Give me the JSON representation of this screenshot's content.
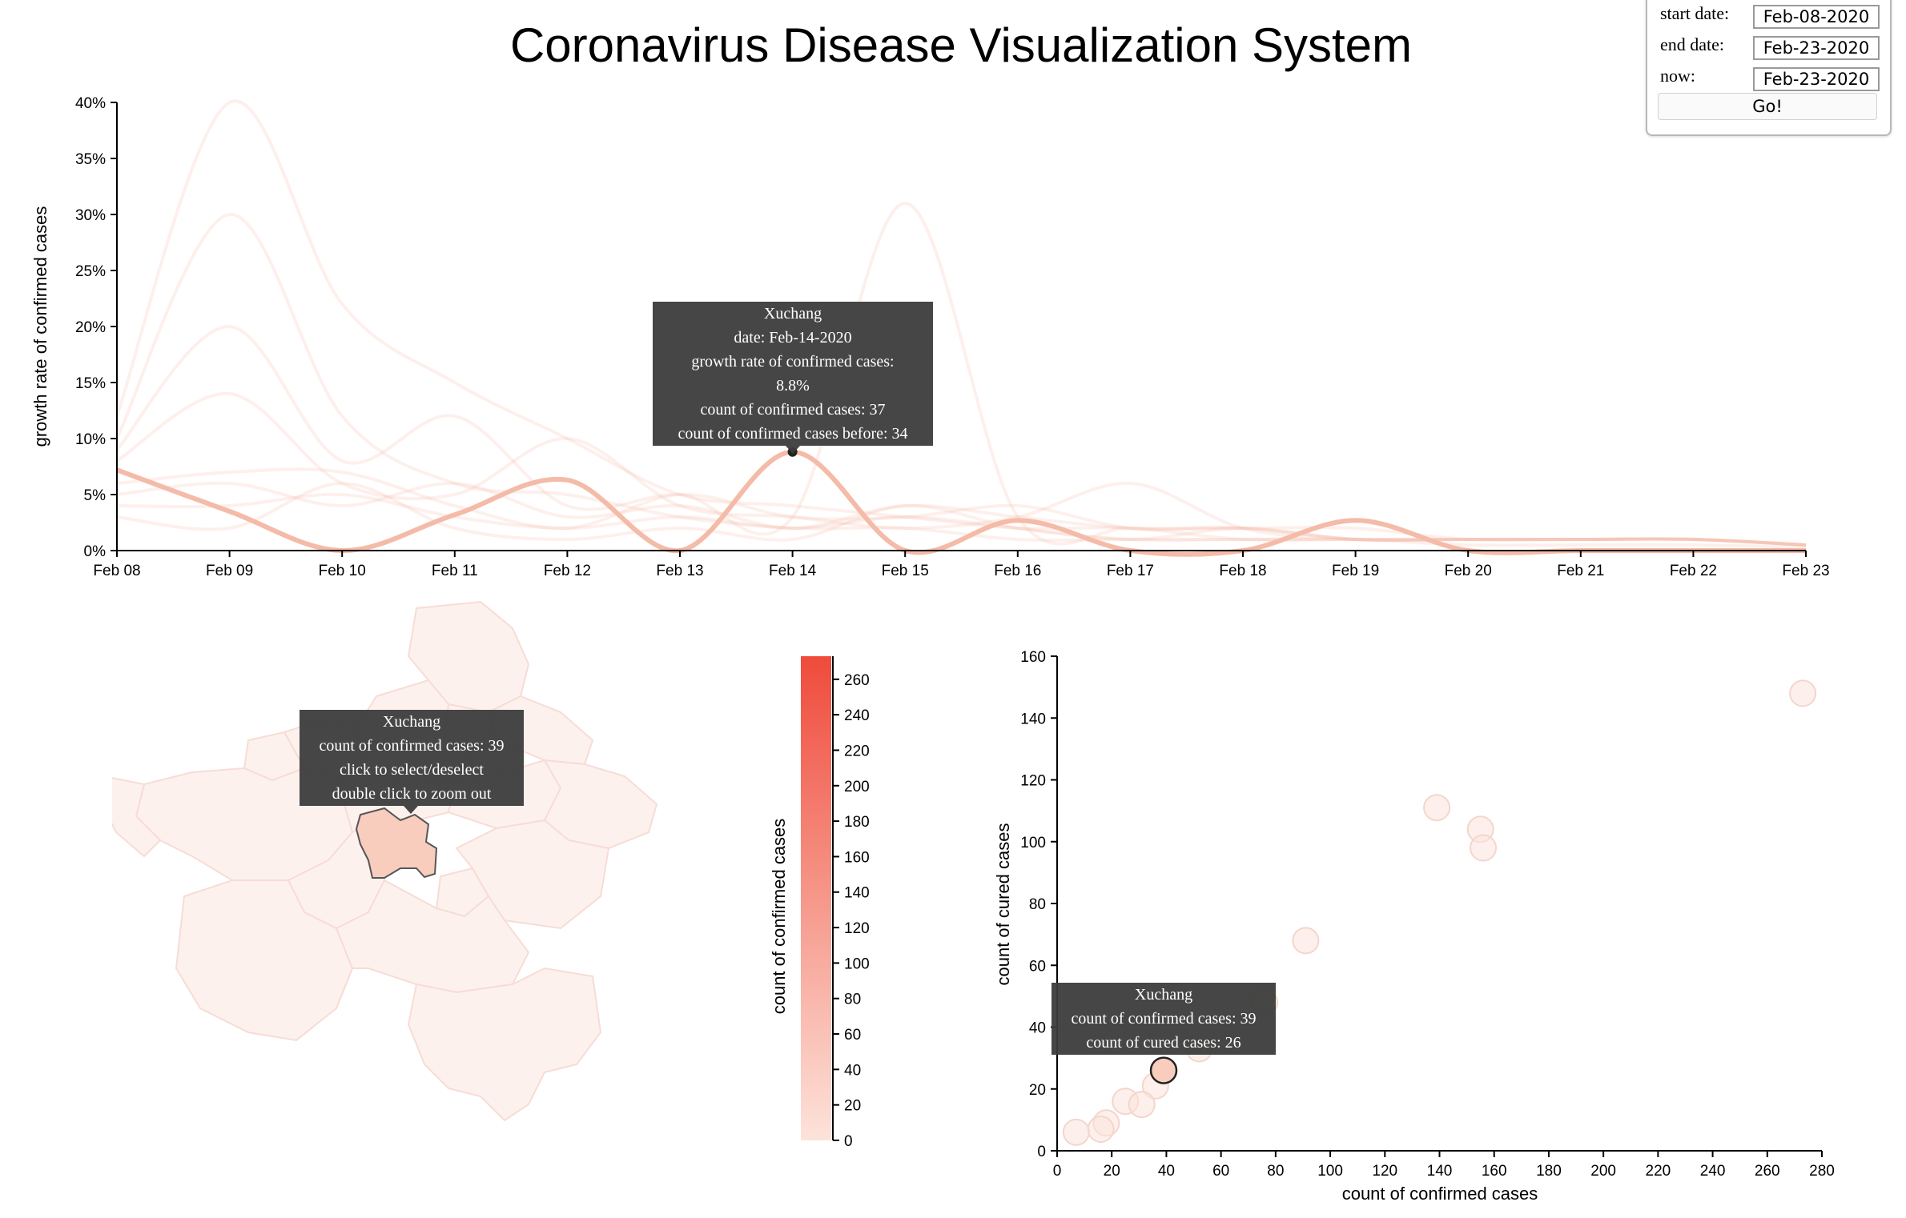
{
  "title": "Coronavirus Disease Visualization System",
  "controls": {
    "start_label": "start date:",
    "start_value": "Feb-08-2020",
    "end_label": "end date:",
    "end_value": "Feb-23-2020",
    "now_label": "now:",
    "now_value": "Feb-23-2020",
    "go_label": "Go!"
  },
  "colors": {
    "accent": "#f4bba8",
    "scale_low": "#fde3da",
    "scale_high": "#ef4b3b",
    "tooltip": "#3c3c3c"
  },
  "chart_data": [
    {
      "type": "line",
      "ylabel": "growth rate of confirmed cases",
      "xlabel": "",
      "x": [
        "Feb 08",
        "Feb 09",
        "Feb 10",
        "Feb 11",
        "Feb 12",
        "Feb 13",
        "Feb 14",
        "Feb 15",
        "Feb 16",
        "Feb 17",
        "Feb 18",
        "Feb 19",
        "Feb 20",
        "Feb 21",
        "Feb 22",
        "Feb 23"
      ],
      "yticks": [
        "0%",
        "5%",
        "10%",
        "15%",
        "20%",
        "25%",
        "30%",
        "35%",
        "40%"
      ],
      "ylim": [
        0,
        40
      ],
      "grid": false,
      "highlighted_series": {
        "name": "Xuchang",
        "values": [
          7.2,
          3.5,
          0,
          3.2,
          6.3,
          0,
          8.8,
          0,
          2.7,
          0,
          0,
          2.7,
          0,
          0,
          0,
          0
        ]
      },
      "background_series": [
        [
          12,
          40,
          22,
          15,
          10,
          5,
          4,
          3,
          2,
          2,
          1,
          1,
          1,
          1,
          1,
          0.5
        ],
        [
          10,
          30,
          12,
          6,
          5,
          3,
          2,
          2,
          1,
          1,
          1,
          1,
          1,
          1,
          1,
          0.5
        ],
        [
          9,
          20,
          8,
          12,
          4,
          5,
          3,
          31,
          3,
          2,
          2,
          1,
          1,
          1,
          1,
          0.5
        ],
        [
          8,
          14,
          6,
          5,
          10,
          4,
          3,
          2,
          3,
          6,
          2,
          1,
          1,
          1,
          1,
          0.5
        ],
        [
          6,
          7,
          7,
          4,
          2,
          5,
          3,
          3,
          4,
          2,
          2,
          2,
          1,
          1,
          1,
          0.5
        ],
        [
          5,
          6,
          4,
          6,
          3,
          4,
          2,
          4,
          3,
          2,
          2,
          1,
          1,
          1,
          1,
          0.5
        ],
        [
          4,
          4,
          5,
          3,
          2,
          3,
          2,
          3,
          2,
          1,
          2,
          1,
          1,
          1,
          1,
          0.5
        ],
        [
          3,
          2,
          6,
          2,
          1,
          2,
          1,
          4,
          2,
          1,
          1,
          1,
          0.5,
          0.5,
          0.5,
          0.3
        ]
      ],
      "tooltip": {
        "name": "Xuchang",
        "date": "date: Feb-14-2020",
        "rate_label": "growth rate of confirmed cases:",
        "rate_value": "8.8%",
        "count": "count of confirmed cases: 37",
        "count_before": "count of confirmed cases before: 34"
      }
    },
    {
      "type": "heatmap",
      "colorbar_label": "count of confirmed cases",
      "colorbar_ticks": [
        "0",
        "20",
        "40",
        "60",
        "80",
        "100",
        "120",
        "140",
        "160",
        "180",
        "200",
        "220",
        "240",
        "260"
      ],
      "range": [
        0,
        273
      ],
      "selected_region": "Xuchang",
      "selected_value": 39,
      "tooltip": {
        "name": "Xuchang",
        "count": "count of confirmed cases: 39",
        "hint1": "click to select/deselect",
        "hint2": "double click to zoom out"
      }
    },
    {
      "type": "scatter",
      "xlabel": "count of confirmed cases",
      "ylabel": "count of cured cases",
      "xlim": [
        0,
        280
      ],
      "ylim": [
        0,
        160
      ],
      "xticks": [
        "0",
        "20",
        "40",
        "60",
        "80",
        "100",
        "120",
        "140",
        "160",
        "180",
        "200",
        "220",
        "240",
        "260",
        "280"
      ],
      "yticks": [
        "0",
        "20",
        "40",
        "60",
        "80",
        "100",
        "120",
        "140",
        "160"
      ],
      "grid": false,
      "points": [
        {
          "x": 273,
          "y": 148
        },
        {
          "x": 139,
          "y": 111
        },
        {
          "x": 155,
          "y": 104
        },
        {
          "x": 156,
          "y": 98
        },
        {
          "x": 91,
          "y": 68
        },
        {
          "x": 76,
          "y": 48
        },
        {
          "x": 52,
          "y": 33
        },
        {
          "x": 36,
          "y": 21
        },
        {
          "x": 25,
          "y": 16
        },
        {
          "x": 31,
          "y": 15
        },
        {
          "x": 18,
          "y": 9
        },
        {
          "x": 16,
          "y": 7
        },
        {
          "x": 7,
          "y": 6
        }
      ],
      "highlighted": {
        "name": "Xuchang",
        "x": 39,
        "y": 26
      },
      "tooltip": {
        "name": "Xuchang",
        "count": "count of confirmed cases: 39",
        "cured": "count of cured cases: 26"
      }
    }
  ]
}
